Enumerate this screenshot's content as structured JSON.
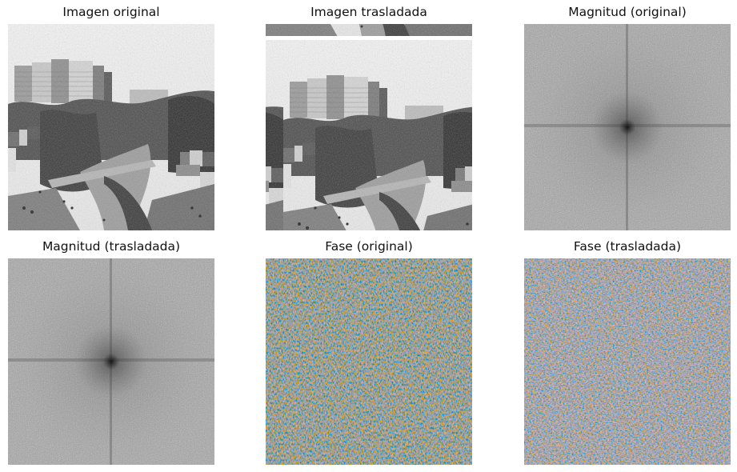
{
  "panels": [
    {
      "title": "Imagen original"
    },
    {
      "title": "Imagen trasladada"
    },
    {
      "title": "Magnitud (original)"
    },
    {
      "title": "Magnitud (trasladada)"
    },
    {
      "title": "Fase (original)"
    },
    {
      "title": "Fase (trasladada)"
    }
  ],
  "colors": {
    "background": "#ffffff",
    "phase_red": "#b23a3a",
    "phase_blue": "#3a3a9c"
  }
}
